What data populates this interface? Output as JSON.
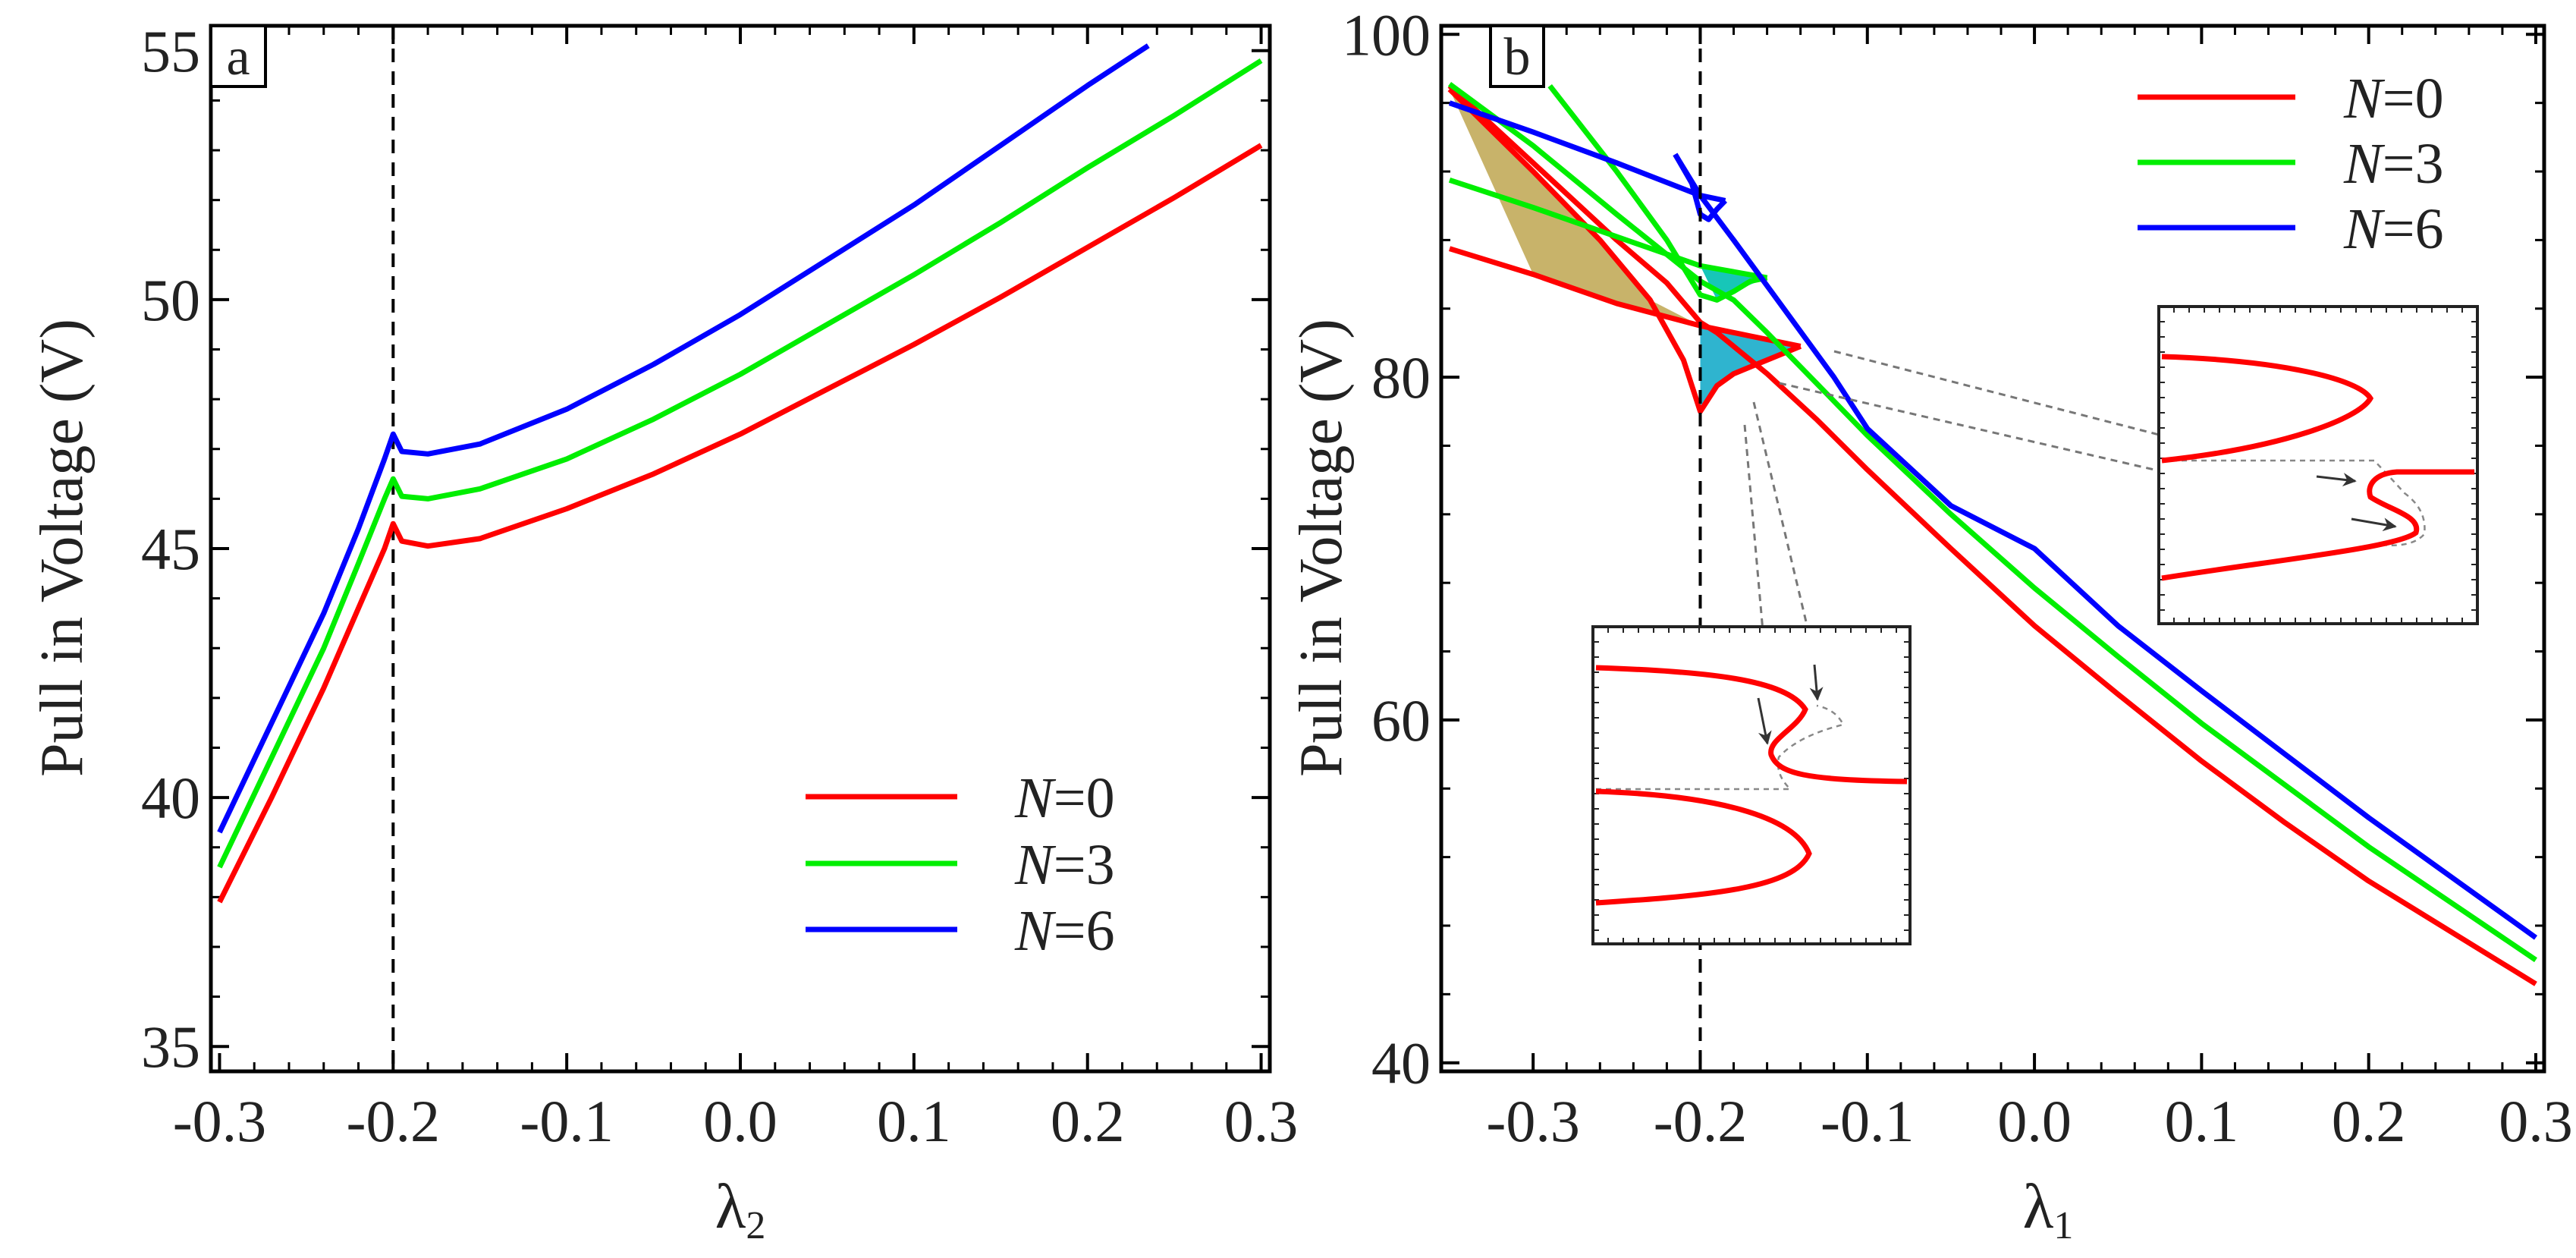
{
  "chart_data": [
    {
      "panel": "a",
      "type": "line",
      "title": "",
      "xlabel": "λ",
      "xlabel_sub": "2",
      "ylabel": "Pull in Voltage (V)",
      "xlim": [
        -0.305,
        0.305
      ],
      "ylim": [
        34.5,
        55.5
      ],
      "xticks": [
        -0.3,
        -0.2,
        -0.1,
        0.0,
        0.1,
        0.2,
        0.3
      ],
      "xtick_labels": [
        "-0.3",
        "-0.2",
        "-0.1",
        "0.0",
        "0.1",
        "0.2",
        "0.3"
      ],
      "yticks": [
        35,
        40,
        45,
        50,
        55
      ],
      "ytick_labels": [
        "35",
        "40",
        "45",
        "50",
        "55"
      ],
      "vline_x": -0.2,
      "legend_position": "bottom-right",
      "series": [
        {
          "name": "N=0",
          "color": "#ff0000",
          "x": [
            -0.3,
            -0.27,
            -0.24,
            -0.22,
            -0.205,
            -0.2,
            -0.195,
            -0.18,
            -0.15,
            -0.1,
            -0.05,
            0.0,
            0.05,
            0.1,
            0.15,
            0.2,
            0.25,
            0.3
          ],
          "y": [
            37.9,
            40.0,
            42.2,
            43.8,
            45.0,
            45.5,
            45.15,
            45.05,
            45.2,
            45.8,
            46.5,
            47.3,
            48.2,
            49.1,
            50.05,
            51.05,
            52.05,
            53.1
          ]
        },
        {
          "name": "N=3",
          "color": "#00ee00",
          "x": [
            -0.3,
            -0.27,
            -0.24,
            -0.22,
            -0.205,
            -0.2,
            -0.195,
            -0.18,
            -0.15,
            -0.1,
            -0.05,
            0.0,
            0.05,
            0.1,
            0.15,
            0.2,
            0.25,
            0.3
          ],
          "y": [
            38.6,
            40.8,
            43.0,
            44.7,
            46.0,
            46.4,
            46.05,
            46.0,
            46.2,
            46.8,
            47.6,
            48.5,
            49.5,
            50.5,
            51.55,
            52.65,
            53.7,
            54.8
          ]
        },
        {
          "name": "N=6",
          "color": "#0000ff",
          "x": [
            -0.3,
            -0.27,
            -0.24,
            -0.22,
            -0.205,
            -0.2,
            -0.195,
            -0.18,
            -0.15,
            -0.1,
            -0.05,
            0.0,
            0.05,
            0.1,
            0.15,
            0.2,
            0.235
          ],
          "y": [
            39.3,
            41.5,
            43.7,
            45.4,
            46.8,
            47.3,
            46.95,
            46.9,
            47.1,
            47.8,
            48.7,
            49.7,
            50.8,
            51.9,
            53.1,
            54.3,
            55.1
          ]
        }
      ]
    },
    {
      "panel": "b",
      "type": "line",
      "title": "",
      "xlabel": "λ",
      "xlabel_sub": "1",
      "ylabel": "Pull in Voltage (V)",
      "xlim": [
        -0.355,
        0.305
      ],
      "ylim": [
        39.5,
        100.5
      ],
      "xticks": [
        -0.3,
        -0.2,
        -0.1,
        0.0,
        0.1,
        0.2,
        0.3
      ],
      "xtick_labels": [
        "-0.3",
        "-0.2",
        "-0.1",
        "0.0",
        "0.1",
        "0.2",
        "0.3"
      ],
      "yticks": [
        40,
        60,
        80,
        100
      ],
      "ytick_labels": [
        "40",
        "60",
        "80",
        "100"
      ],
      "vline_x": -0.2,
      "legend_position": "top-right",
      "series": [
        {
          "name": "N=0",
          "color": "#ff0000",
          "branches": [
            {
              "x": [
                -0.35,
                -0.3,
                -0.25,
                -0.2,
                -0.17,
                -0.14
              ],
              "y": [
                87.5,
                86.0,
                84.3,
                83.0,
                82.4,
                81.8
              ]
            },
            {
              "x": [
                -0.35,
                -0.3,
                -0.26,
                -0.23,
                -0.21,
                -0.2,
                -0.19,
                -0.18,
                -0.17,
                -0.16,
                -0.15,
                -0.14
              ],
              "y": [
                96.8,
                92.0,
                88.0,
                84.5,
                81.0,
                78.0,
                79.5,
                80.2,
                80.6,
                81.0,
                81.4,
                81.8
              ]
            },
            {
              "x": [
                -0.35,
                -0.3,
                -0.25,
                -0.22,
                -0.2,
                -0.19,
                -0.18,
                -0.16,
                -0.13,
                -0.1,
                -0.05,
                0.0,
                0.05,
                0.1,
                0.15,
                0.2,
                0.25,
                0.3
              ],
              "y": [
                97.0,
                92.5,
                88.0,
                85.5,
                83.2,
                82.6,
                81.8,
                80.2,
                77.5,
                74.6,
                70.0,
                65.5,
                61.5,
                57.6,
                54.0,
                50.6,
                47.6,
                44.6
              ]
            }
          ]
        },
        {
          "name": "N=3",
          "color": "#00ee00",
          "branches": [
            {
              "x": [
                -0.35,
                -0.3,
                -0.25,
                -0.2,
                -0.16
              ],
              "y": [
                91.5,
                89.9,
                88.2,
                86.5,
                85.8
              ]
            },
            {
              "x": [
                -0.29,
                -0.25,
                -0.22,
                -0.2,
                -0.19,
                -0.18,
                -0.17,
                -0.16
              ],
              "y": [
                97.0,
                92.0,
                88.0,
                84.8,
                84.5,
                85.0,
                85.6,
                85.8
              ]
            },
            {
              "x": [
                -0.35,
                -0.3,
                -0.25,
                -0.2,
                -0.18,
                -0.16,
                -0.13,
                -0.1,
                -0.05,
                0.0,
                0.05,
                0.1,
                0.15,
                0.2,
                0.25,
                0.3
              ],
              "y": [
                97.1,
                93.5,
                89.5,
                85.6,
                84.5,
                82.6,
                79.6,
                76.6,
                72.0,
                67.7,
                63.7,
                59.8,
                56.2,
                52.6,
                49.3,
                46.0
              ]
            }
          ]
        },
        {
          "name": "N=6",
          "color": "#0000ff",
          "branches": [
            {
              "x": [
                -0.35,
                -0.3,
                -0.25,
                -0.2,
                -0.185
              ],
              "y": [
                96.0,
                94.3,
                92.5,
                90.6,
                90.3
              ]
            },
            {
              "x": [
                -0.215,
                -0.205,
                -0.2,
                -0.195,
                -0.19,
                -0.185
              ],
              "y": [
                93.0,
                91.3,
                89.5,
                89.2,
                89.8,
                90.3
              ]
            },
            {
              "x": [
                -0.215,
                -0.2,
                -0.18,
                -0.15,
                -0.12,
                -0.1,
                -0.05,
                0.0,
                0.05,
                0.1,
                0.15,
                0.2,
                0.25,
                0.3
              ],
              "y": [
                93.0,
                90.6,
                88.0,
                84.0,
                80.0,
                77.0,
                72.5,
                70.0,
                65.5,
                61.7,
                58.0,
                54.3,
                50.8,
                47.3
              ]
            }
          ]
        }
      ],
      "shaded_regions": [
        {
          "name": "olive-region",
          "color": "#c8b36a",
          "x": [
            -0.35,
            -0.3,
            -0.26,
            -0.23,
            -0.2,
            -0.25,
            -0.3
          ],
          "y": [
            96.8,
            92.0,
            88.0,
            84.5,
            83.0,
            84.3,
            86.0
          ]
        },
        {
          "name": "cyan-region",
          "color": "#2fb4cf",
          "x": [
            -0.2,
            -0.17,
            -0.14,
            -0.16,
            -0.18,
            -0.19,
            -0.2
          ],
          "y": [
            83.0,
            82.4,
            81.8,
            81.0,
            80.2,
            79.5,
            78.0
          ]
        },
        {
          "name": "green-cyan-region",
          "color": "#17c6b8",
          "x": [
            -0.2,
            -0.16,
            -0.18,
            -0.19
          ],
          "y": [
            86.5,
            85.8,
            85.0,
            84.5
          ]
        }
      ]
    }
  ],
  "legend": [
    {
      "italic": "N",
      "rest": "=0",
      "color": "#ff0000"
    },
    {
      "italic": "N",
      "rest": "=3",
      "color": "#00ee00"
    },
    {
      "italic": "N",
      "rest": "=6",
      "color": "#0000ff"
    }
  ]
}
